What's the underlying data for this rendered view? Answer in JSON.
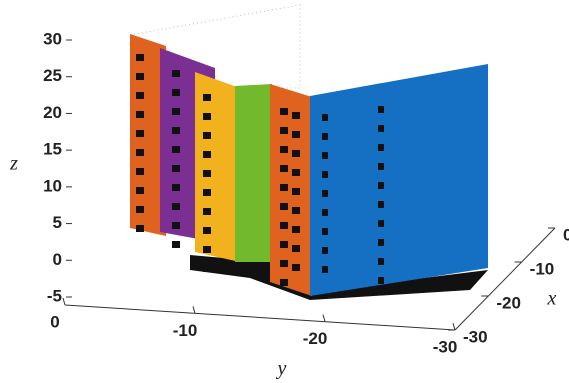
{
  "chart_data": {
    "type": "scatter3d",
    "xlabel": "x",
    "ylabel": "y",
    "zlabel": "z",
    "xlim": [
      0,
      -30
    ],
    "xticks": [
      0,
      -10,
      -20,
      -30
    ],
    "ylim": [
      0,
      -30
    ],
    "yticks": [
      0,
      -10,
      -20,
      -30
    ],
    "zlim": [
      -5,
      30
    ],
    "zticks": [
      -5,
      0,
      5,
      10,
      15,
      20,
      25,
      30
    ]
  }
}
